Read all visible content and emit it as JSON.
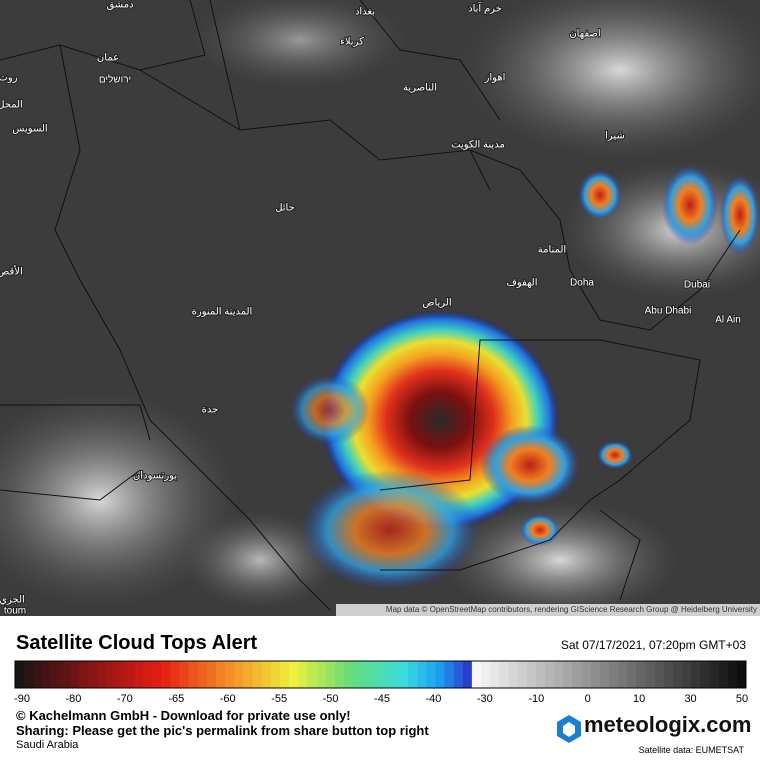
{
  "header": {
    "title": "Satellite Cloud Tops Alert",
    "timestamp": "Sat 07/17/2021, 07:20pm GMT+03"
  },
  "map": {
    "labels": [
      "دمشق",
      "بغداد",
      "خرم آباد",
      "كربلاء",
      "اصفهان",
      "عمان",
      "ירושלים",
      "روت",
      "اهواز",
      "الناصرية",
      "المحل",
      "السويس",
      "شيرا",
      "مدينة الكويت",
      "حائل",
      "المنامة",
      "الأقص",
      "الهفوف",
      "Doha",
      "Dubai",
      "الرياض",
      "Abu Dhabi",
      "المدينة المنورة",
      "Al Ain",
      "جدة",
      "بورتسودان",
      "الجزي",
      "toum"
    ],
    "attribution": "Map data © OpenStreetMap contributors, rendering GIScience Research Group @ Heidelberg University"
  },
  "legend": {
    "ticks": [
      -90,
      -80,
      -70,
      -65,
      -60,
      -55,
      -50,
      -45,
      -40,
      -30,
      -10,
      0,
      10,
      30,
      50
    ]
  },
  "footer": {
    "copyright": "© Kachelmann GmbH - Download for private use only!",
    "sharing": "Sharing: Please get the pic's permalink from share button top right",
    "region": "Saudi Arabia",
    "brand": "meteologix.com",
    "source": "Satellite data: EUMETSAT"
  }
}
